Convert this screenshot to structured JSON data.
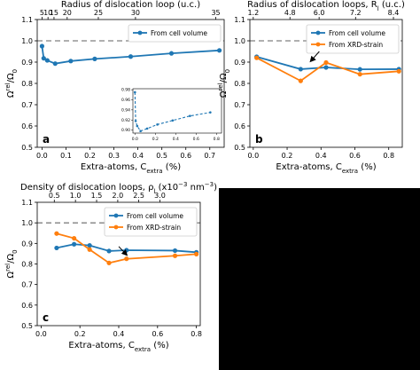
{
  "colors": {
    "blue": "#1f77b4",
    "orange": "#ff7f0e",
    "reference": "#808080"
  },
  "chart_data": [
    {
      "type": "line",
      "panel_label": "a",
      "xlabel_main": "Extra-atoms, C",
      "xlabel_sub": "extra",
      "xlabel_tail": " (%)",
      "ylabel": "Ω^rel/Ω_0",
      "top_axis_title": "Radius of dislocation loop (u.c.)",
      "xlim": [
        -0.02,
        0.76
      ],
      "ylim": [
        0.5,
        1.1
      ],
      "xticks": [
        0.0,
        0.1,
        0.2,
        0.3,
        0.4,
        0.5,
        0.6,
        0.7
      ],
      "yticks": [
        0.5,
        0.6,
        0.7,
        0.8,
        0.9,
        1.0,
        1.1
      ],
      "top_ticks": [
        {
          "x": 0.0,
          "label": "5"
        },
        {
          "x": 0.025,
          "label": "10"
        },
        {
          "x": 0.05,
          "label": "15"
        },
        {
          "x": 0.105,
          "label": "20"
        },
        {
          "x": 0.235,
          "label": "25"
        },
        {
          "x": 0.39,
          "label": "30"
        },
        {
          "x": 0.725,
          "label": "35"
        }
      ],
      "reference_line": 1.0,
      "legend_position": "top-right",
      "series": [
        {
          "name": "From cell volume",
          "color": "blue",
          "x": [
            0.0,
            0.007,
            0.022,
            0.055,
            0.12,
            0.22,
            0.37,
            0.54,
            0.74
          ],
          "y": [
            0.975,
            0.918,
            0.908,
            0.893,
            0.905,
            0.915,
            0.926,
            0.941,
            0.955
          ]
        }
      ],
      "inset": {
        "xlim": [
          -0.02,
          0.85
        ],
        "ylim": [
          0.894,
          0.982
        ],
        "xticks": [
          0.0,
          0.2,
          0.4,
          0.6,
          0.8
        ],
        "xticklabels": [
          "0.0",
          "0.2",
          "0.4",
          "0.6",
          "0.8"
        ],
        "yticks": [
          0.9,
          0.92,
          0.94,
          0.96,
          0.98
        ],
        "yticklabels": [
          "0.90",
          "0.92",
          "0.94",
          "0.96",
          "0.98"
        ],
        "x": [
          0.0,
          0.007,
          0.022,
          0.055,
          0.12,
          0.22,
          0.37,
          0.54,
          0.74
        ],
        "y": [
          0.975,
          0.918,
          0.908,
          0.898,
          0.903,
          0.911,
          0.919,
          0.928,
          0.935
        ]
      }
    },
    {
      "type": "line",
      "panel_label": "b",
      "xlabel_main": "Extra-atoms, C",
      "xlabel_sub": "extra",
      "xlabel_tail": " (%)",
      "ylabel": "Ω^rel/Ω_0",
      "top_axis_title": "Radius of dislocation loops, R_l (u.c.)",
      "xlim": [
        -0.02,
        0.88
      ],
      "ylim": [
        0.5,
        1.1
      ],
      "xticks": [
        0.0,
        0.2,
        0.4,
        0.6,
        0.8
      ],
      "yticks": [
        0.5,
        0.6,
        0.7,
        0.8,
        0.9,
        1.0,
        1.1
      ],
      "top_ticks": [
        {
          "x": 0.0,
          "label": "1.2"
        },
        {
          "x": 0.2167,
          "label": "4.8"
        },
        {
          "x": 0.3889,
          "label": "6.0"
        },
        {
          "x": 0.6042,
          "label": "7.2"
        },
        {
          "x": 0.8278,
          "label": "8.4"
        }
      ],
      "reference_line": 1.0,
      "legend_position": "top-right",
      "arrow": {
        "from": [
          0.39,
          0.95
        ],
        "to": [
          0.34,
          0.905
        ]
      },
      "series": [
        {
          "name": "From cell volume",
          "color": "blue",
          "x": [
            0.02,
            0.28,
            0.43,
            0.63,
            0.86
          ],
          "y": [
            0.925,
            0.867,
            0.875,
            0.866,
            0.867
          ]
        },
        {
          "name": "From XRD-strain",
          "color": "orange",
          "x": [
            0.02,
            0.28,
            0.43,
            0.63,
            0.86
          ],
          "y": [
            0.92,
            0.812,
            0.898,
            0.843,
            0.857
          ]
        }
      ]
    },
    {
      "type": "line",
      "panel_label": "c",
      "xlabel_main": "Extra-atoms, C",
      "xlabel_sub": "extra",
      "xlabel_tail": " (%)",
      "ylabel": "Ω^rel/Ω_0",
      "top_axis_title": "Density of dislocation loops, ρ_l (x10^−3 nm^−3)",
      "xlim": [
        -0.02,
        0.82
      ],
      "ylim": [
        0.5,
        1.1
      ],
      "xticks": [
        0.0,
        0.2,
        0.4,
        0.6,
        0.8
      ],
      "yticks": [
        0.5,
        0.6,
        0.7,
        0.8,
        0.9,
        1.0,
        1.1
      ],
      "top_ticks": [
        {
          "x": 0.068,
          "label": "0.5"
        },
        {
          "x": 0.177,
          "label": "1.0"
        },
        {
          "x": 0.286,
          "label": "1.5"
        },
        {
          "x": 0.395,
          "label": "2.0"
        },
        {
          "x": 0.503,
          "label": "2.5"
        },
        {
          "x": 0.612,
          "label": "3.0"
        }
      ],
      "reference_line": 1.0,
      "legend_position": "top-right",
      "arrow": {
        "from": [
          0.4,
          0.885
        ],
        "to": [
          0.44,
          0.845
        ]
      },
      "series": [
        {
          "name": "From cell volume",
          "color": "blue",
          "x": [
            0.08,
            0.17,
            0.25,
            0.35,
            0.44,
            0.69,
            0.8
          ],
          "y": [
            0.878,
            0.896,
            0.89,
            0.863,
            0.867,
            0.865,
            0.857
          ]
        },
        {
          "name": "From XRD-strain",
          "color": "orange",
          "x": [
            0.08,
            0.17,
            0.25,
            0.35,
            0.44,
            0.69,
            0.8
          ],
          "y": [
            0.948,
            0.925,
            0.87,
            0.805,
            0.825,
            0.84,
            0.848
          ]
        }
      ]
    }
  ]
}
